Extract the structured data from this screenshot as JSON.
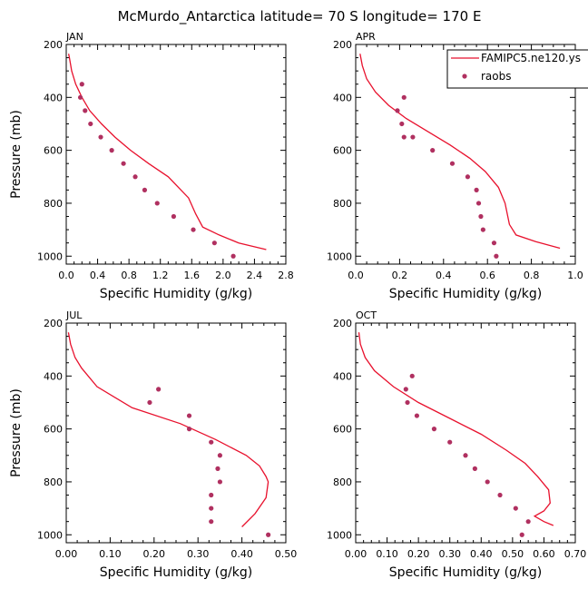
{
  "chart_data": {
    "type": "line",
    "title": "McMurdo_Antarctica  latitude= 70 S longitude= 170 E",
    "legend": {
      "placement": "top-right",
      "entries": [
        {
          "name": "FAMIPC5.ne120.ys",
          "style": "line",
          "color": "#e8112d"
        },
        {
          "name": "raobs",
          "style": "marker",
          "color": "#b03060"
        }
      ]
    },
    "panels": [
      {
        "label": "JAN",
        "xlabel": "Specific Humidity (g/kg)",
        "ylabel": "Pressure (mb)",
        "xlim": [
          0,
          2.8
        ],
        "ylim": [
          1030,
          200
        ],
        "xticks": [
          0,
          0.4,
          0.8,
          1.2,
          1.6,
          2.0,
          2.4,
          2.8
        ],
        "xticklabels": [
          "0.0",
          "0.4",
          "0.8",
          "1.2",
          "1.6",
          "2.0",
          "2.4",
          "2.8"
        ],
        "yticks": [
          200,
          400,
          600,
          800,
          1000
        ],
        "series": [
          {
            "name": "FAMIPC5.ne120.ys",
            "x": [
              0.03,
              0.04,
              0.07,
              0.12,
              0.2,
              0.3,
              0.45,
              0.62,
              0.82,
              1.05,
              1.3,
              1.56,
              1.65,
              1.74,
              1.95,
              2.2,
              2.55
            ],
            "y": [
              235,
              250,
              300,
              350,
              400,
              450,
              500,
              550,
              600,
              650,
              700,
              780,
              840,
              890,
              920,
              950,
              975
            ]
          },
          {
            "name": "raobs",
            "x": [
              0.2,
              0.18,
              0.24,
              0.31,
              0.44,
              0.58,
              0.73,
              0.88,
              1.0,
              1.16,
              1.37,
              1.62,
              1.89,
              2.13
            ],
            "y": [
              350,
              400,
              450,
              500,
              550,
              600,
              650,
              700,
              750,
              800,
              850,
              900,
              950,
              1000
            ]
          }
        ]
      },
      {
        "label": "APR",
        "xlabel": "Specific Humidity (g/kg)",
        "ylabel": "",
        "xlim": [
          0,
          1.0
        ],
        "ylim": [
          1030,
          200
        ],
        "xticks": [
          0,
          0.2,
          0.4,
          0.6,
          0.8,
          1.0
        ],
        "xticklabels": [
          "0.0",
          "0.2",
          "0.4",
          "0.6",
          "0.8",
          "1.0"
        ],
        "yticks": [
          200,
          400,
          600,
          800,
          1000
        ],
        "series": [
          {
            "name": "FAMIPC5.ne120.ys",
            "x": [
              0.02,
              0.03,
              0.05,
              0.09,
              0.15,
              0.23,
              0.33,
              0.43,
              0.52,
              0.59,
              0.65,
              0.68,
              0.7,
              0.73,
              0.82,
              0.93
            ],
            "y": [
              235,
              280,
              330,
              380,
              430,
              480,
              530,
              580,
              630,
              680,
              740,
              800,
              880,
              920,
              945,
              970
            ]
          },
          {
            "name": "raobs",
            "x": [
              0.22,
              0.19,
              0.21,
              0.22,
              0.26,
              0.35,
              0.44,
              0.51,
              0.55,
              0.56,
              0.57,
              0.58,
              0.63,
              0.64
            ],
            "y": [
              400,
              450,
              500,
              550,
              550,
              600,
              650,
              700,
              750,
              800,
              850,
              900,
              950,
              1000
            ]
          }
        ]
      },
      {
        "label": "JUL",
        "xlabel": "Specific Humidity (g/kg)",
        "ylabel": "Pressure (mb)",
        "xlim": [
          0,
          0.5
        ],
        "ylim": [
          1030,
          200
        ],
        "xticks": [
          0,
          0.1,
          0.2,
          0.3,
          0.4,
          0.5
        ],
        "xticklabels": [
          "0.00",
          "0.10",
          "0.20",
          "0.30",
          "0.40",
          "0.50"
        ],
        "yticks": [
          200,
          400,
          600,
          800,
          1000
        ],
        "series": [
          {
            "name": "FAMIPC5.ne120.ys",
            "x": [
              0.005,
              0.01,
              0.02,
              0.035,
              0.07,
              0.15,
              0.26,
              0.34,
              0.41,
              0.44,
              0.455,
              0.46,
              0.455,
              0.43,
              0.4
            ],
            "y": [
              235,
              280,
              330,
              370,
              440,
              520,
              580,
              640,
              700,
              740,
              780,
              800,
              860,
              920,
              970
            ]
          },
          {
            "name": "raobs",
            "x": [
              0.21,
              0.19,
              0.28,
              0.28,
              0.33,
              0.35,
              0.345,
              0.35,
              0.33,
              0.33,
              0.33,
              0.46
            ],
            "y": [
              450,
              500,
              550,
              600,
              650,
              700,
              750,
              800,
              850,
              900,
              950,
              1000
            ]
          }
        ]
      },
      {
        "label": "OCT",
        "xlabel": "Specific Humidity (g/kg)",
        "ylabel": "",
        "xlim": [
          0,
          0.7
        ],
        "ylim": [
          1030,
          200
        ],
        "xticks": [
          0,
          0.1,
          0.2,
          0.3,
          0.4,
          0.5,
          0.6,
          0.7
        ],
        "xticklabels": [
          "0.00",
          "0.10",
          "0.20",
          "0.30",
          "0.40",
          "0.50",
          "0.60",
          "0.70"
        ],
        "yticks": [
          200,
          400,
          600,
          800,
          1000
        ],
        "series": [
          {
            "name": "FAMIPC5.ne120.ys",
            "x": [
              0.01,
              0.015,
              0.03,
              0.06,
              0.12,
              0.2,
              0.3,
              0.4,
              0.48,
              0.54,
              0.58,
              0.615,
              0.62,
              0.6,
              0.57,
              0.6,
              0.63
            ],
            "y": [
              235,
              280,
              330,
              380,
              440,
              500,
              560,
              620,
              680,
              730,
              780,
              830,
              880,
              910,
              930,
              950,
              965
            ]
          },
          {
            "name": "raobs",
            "x": [
              0.18,
              0.16,
              0.165,
              0.195,
              0.25,
              0.3,
              0.35,
              0.38,
              0.42,
              0.46,
              0.51,
              0.55,
              0.53
            ],
            "y": [
              400,
              450,
              500,
              550,
              600,
              650,
              700,
              750,
              800,
              850,
              900,
              950,
              1000
            ]
          }
        ]
      }
    ]
  }
}
